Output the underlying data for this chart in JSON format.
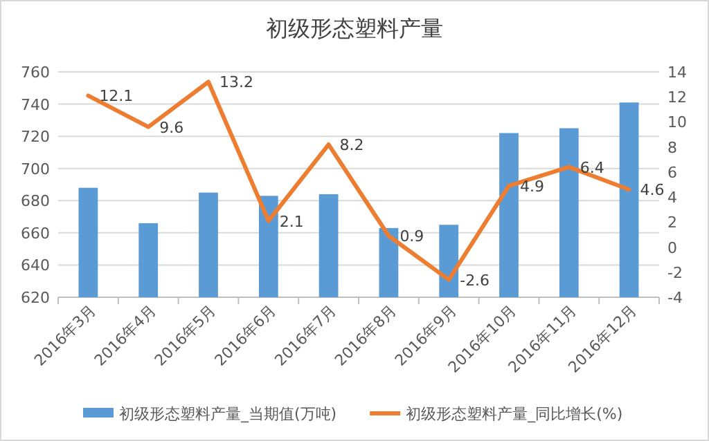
{
  "chart_data": {
    "type": "bar",
    "title": "初级形态塑料产量",
    "categories": [
      "2016年3月",
      "2016年4月",
      "2016年5月",
      "2016年6月",
      "2016年7月",
      "2016年8月",
      "2016年9月",
      "2016年10月",
      "2016年11月",
      "2016年12月"
    ],
    "series": [
      {
        "name": "初级形态塑料产量_当期值(万吨)",
        "color": "#5b9bd5",
        "values": [
          688,
          666,
          685,
          683,
          684,
          663,
          665,
          722,
          725,
          741
        ]
      },
      {
        "name": "初级形态塑料产量_同比增长(%)",
        "type": "line",
        "axis": "y2",
        "color": "#ed7d31",
        "values": [
          12.1,
          9.6,
          13.2,
          2.1,
          8.2,
          0.9,
          -2.6,
          4.9,
          6.4,
          4.6
        ],
        "value_labels": [
          "12.1",
          "9.6",
          "13.2",
          "2.1",
          "8.2",
          "0.9",
          "-2.6",
          "4.9",
          "6.4",
          "4.6"
        ]
      }
    ],
    "ylim": [
      620,
      760
    ],
    "yticks": [
      620,
      640,
      660,
      680,
      700,
      720,
      740,
      760
    ],
    "y2lim": [
      -4,
      14
    ],
    "y2ticks": [
      -4,
      -2,
      0,
      2,
      4,
      6,
      8,
      10,
      12,
      14
    ],
    "grid": "y",
    "legend": "bottom",
    "marker": "none",
    "line_style": "solid"
  }
}
